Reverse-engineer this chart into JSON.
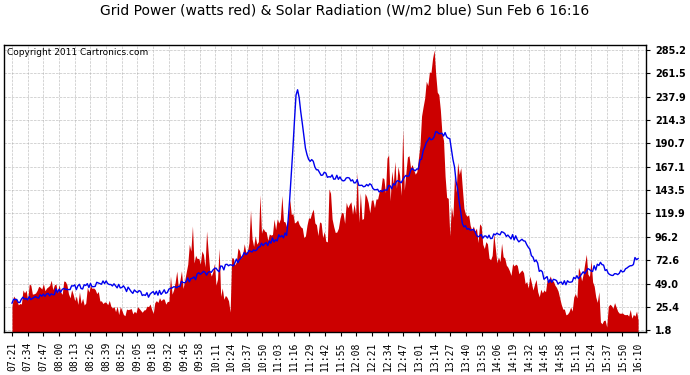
{
  "title": "Grid Power (watts red) & Solar Radiation (W/m2 blue) Sun Feb 6 16:16",
  "copyright": "Copyright 2011 Cartronics.com",
  "yticks": [
    1.8,
    25.4,
    49.0,
    72.6,
    96.2,
    119.9,
    143.5,
    167.1,
    190.7,
    214.3,
    237.9,
    261.5,
    285.2
  ],
  "ymin": 1.8,
  "ymax": 285.2,
  "bg_color": "#ffffff",
  "plot_bg_color": "#ffffff",
  "grid_color": "#aaaaaa",
  "title_fontsize": 10,
  "copyright_fontsize": 6.5,
  "tick_fontsize": 7,
  "red_color": "#cc0000",
  "blue_color": "#0000ee",
  "time_labels": [
    "07:21",
    "07:34",
    "07:47",
    "08:00",
    "08:13",
    "08:26",
    "08:39",
    "08:52",
    "09:05",
    "09:18",
    "09:32",
    "09:45",
    "09:58",
    "10:11",
    "10:24",
    "10:37",
    "10:50",
    "11:03",
    "11:16",
    "11:29",
    "11:42",
    "11:55",
    "12:08",
    "12:21",
    "12:34",
    "12:47",
    "13:01",
    "13:14",
    "13:27",
    "13:40",
    "13:53",
    "14:06",
    "14:19",
    "14:32",
    "14:45",
    "14:58",
    "15:11",
    "15:24",
    "15:37",
    "15:50",
    "16:10"
  ]
}
